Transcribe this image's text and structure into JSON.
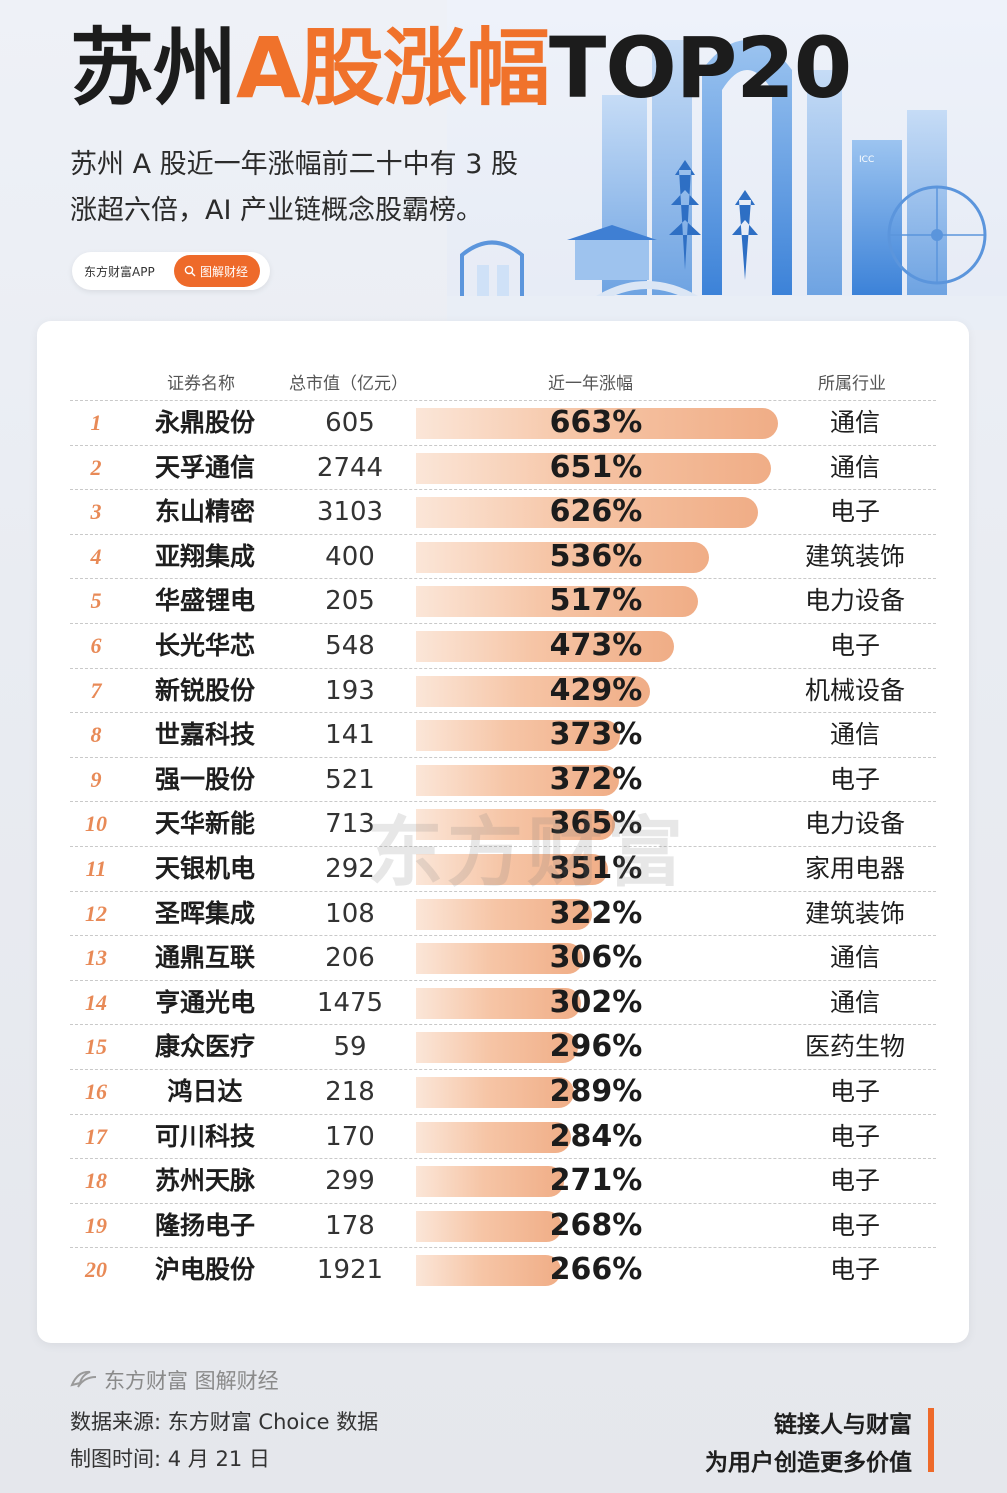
{
  "header": {
    "title_part1": "苏州",
    "title_part2": "A股涨幅",
    "title_part3": "TOP20",
    "subtitle_line1": "苏州 A 股近一年涨幅前二十中有 3 股",
    "subtitle_line2": "涨超六倍，AI 产业链概念股霸榜。",
    "app_name": "东方财富APP",
    "badge_label": "图解财经",
    "skyline_sign": "ICC"
  },
  "table": {
    "col_name": "证券名称",
    "col_cap": "总市值（亿元）",
    "col_change": "近一年涨幅",
    "col_industry": "所属行业"
  },
  "watermark": "东方财富",
  "chart_data": {
    "type": "table",
    "title": "苏州A股涨幅TOP20",
    "columns": [
      "证券名称",
      "总市值（亿元）",
      "近一年涨幅",
      "所属行业"
    ],
    "rows": [
      {
        "rank": 1,
        "name": "永鼎股份",
        "cap": 605,
        "change": 663,
        "change_label": "663%",
        "industry": "通信"
      },
      {
        "rank": 2,
        "name": "天孚通信",
        "cap": 2744,
        "change": 651,
        "change_label": "651%",
        "industry": "通信"
      },
      {
        "rank": 3,
        "name": "东山精密",
        "cap": 3103,
        "change": 626,
        "change_label": "626%",
        "industry": "电子"
      },
      {
        "rank": 4,
        "name": "亚翔集成",
        "cap": 400,
        "change": 536,
        "change_label": "536%",
        "industry": "建筑装饰"
      },
      {
        "rank": 5,
        "name": "华盛锂电",
        "cap": 205,
        "change": 517,
        "change_label": "517%",
        "industry": "电力设备"
      },
      {
        "rank": 6,
        "name": "长光华芯",
        "cap": 548,
        "change": 473,
        "change_label": "473%",
        "industry": "电子"
      },
      {
        "rank": 7,
        "name": "新锐股份",
        "cap": 193,
        "change": 429,
        "change_label": "429%",
        "industry": "机械设备"
      },
      {
        "rank": 8,
        "name": "世嘉科技",
        "cap": 141,
        "change": 373,
        "change_label": "373%",
        "industry": "通信"
      },
      {
        "rank": 9,
        "name": "强一股份",
        "cap": 521,
        "change": 372,
        "change_label": "372%",
        "industry": "电子"
      },
      {
        "rank": 10,
        "name": "天华新能",
        "cap": 713,
        "change": 365,
        "change_label": "365%",
        "industry": "电力设备"
      },
      {
        "rank": 11,
        "name": "天银机电",
        "cap": 292,
        "change": 351,
        "change_label": "351%",
        "industry": "家用电器"
      },
      {
        "rank": 12,
        "name": "圣晖集成",
        "cap": 108,
        "change": 322,
        "change_label": "322%",
        "industry": "建筑装饰"
      },
      {
        "rank": 13,
        "name": "通鼎互联",
        "cap": 206,
        "change": 306,
        "change_label": "306%",
        "industry": "通信"
      },
      {
        "rank": 14,
        "name": "亨通光电",
        "cap": 1475,
        "change": 302,
        "change_label": "302%",
        "industry": "通信"
      },
      {
        "rank": 15,
        "name": "康众医疗",
        "cap": 59,
        "change": 296,
        "change_label": "296%",
        "industry": "医药生物"
      },
      {
        "rank": 16,
        "name": "鸿日达",
        "cap": 218,
        "change": 289,
        "change_label": "289%",
        "industry": "电子"
      },
      {
        "rank": 17,
        "name": "可川科技",
        "cap": 170,
        "change": 284,
        "change_label": "284%",
        "industry": "电子"
      },
      {
        "rank": 18,
        "name": "苏州天脉",
        "cap": 299,
        "change": 271,
        "change_label": "271%",
        "industry": "电子"
      },
      {
        "rank": 19,
        "name": "隆扬电子",
        "cap": 178,
        "change": 268,
        "change_label": "268%",
        "industry": "电子"
      },
      {
        "rank": 20,
        "name": "沪电股份",
        "cap": 1921,
        "change": 266,
        "change_label": "266%",
        "industry": "电子"
      }
    ],
    "bar_color": "#f0ad86",
    "accent_color": "#ee6a2a"
  },
  "footer": {
    "logo_text": "东方财富 图解财经",
    "source": "数据来源: 东方财富 Choice 数据",
    "time": "制图时间: 4 月 21 日",
    "slogan_line1": "链接人与财富",
    "slogan_line2": "为用户创造更多价值"
  }
}
